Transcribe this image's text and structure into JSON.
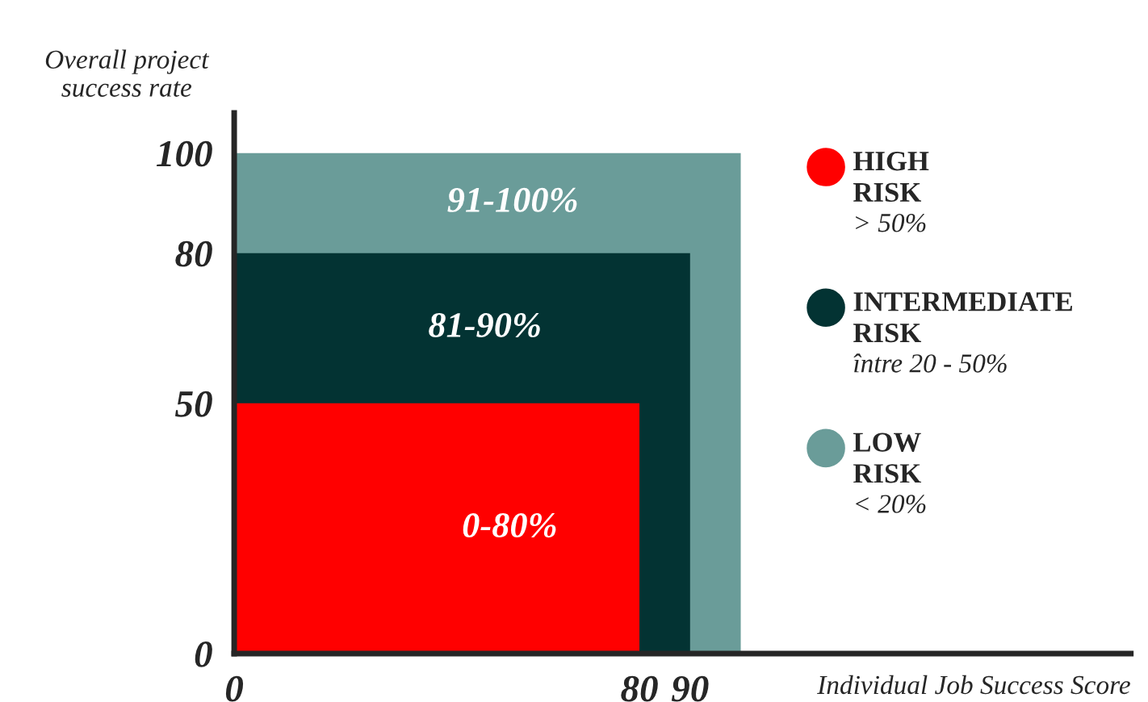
{
  "chart_data": {
    "type": "area",
    "xlabel": "Individual Job Success Score",
    "ylabel": "Overall project success rate",
    "series": [
      {
        "name": "HIGH RISK",
        "color": "#ff0000",
        "x": [
          0,
          80
        ],
        "values": [
          50,
          50
        ]
      },
      {
        "name": "INTERMEDIATE RISK",
        "color": "#033333",
        "x": [
          0,
          90
        ],
        "values": [
          80,
          80
        ]
      },
      {
        "name": "LOW RISK",
        "color": "#6a9c99",
        "x": [
          0,
          100
        ],
        "values": [
          100,
          100
        ]
      }
    ],
    "xlim": [
      0,
      177
    ],
    "ylim": [
      0,
      108
    ],
    "xticks": [
      0,
      80,
      90
    ],
    "yticks": [
      0,
      50,
      80,
      100
    ],
    "grid": false,
    "legend": "top right",
    "annotations": [
      "0-80%",
      "81-90%",
      "91-100%",
      "> 50%",
      "între 20 - 50%",
      "< 20%"
    ]
  }
}
